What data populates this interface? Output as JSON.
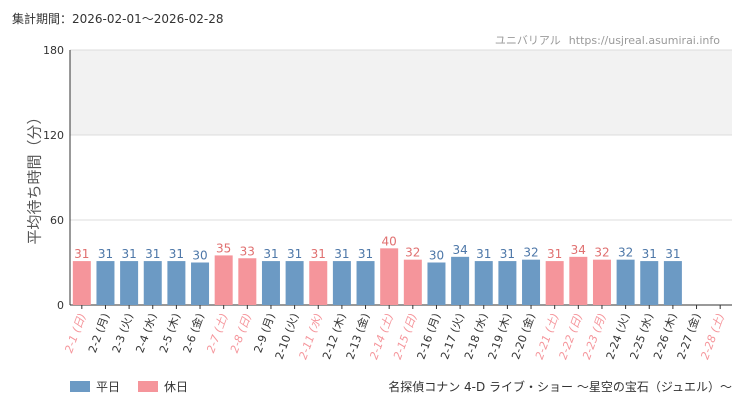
{
  "header": {
    "period_label": "集計期間：2026-02-01～2026-02-28",
    "site_name": "ユニバリアル",
    "site_url": "https://usjreal.asumirai.info"
  },
  "footer": {
    "subtitle": "名探偵コナン 4-D ライブ・ショー ～星空の宝石（ジュエル）～"
  },
  "colors": {
    "weekday": "#6c9ac4",
    "holiday": "#f5959b",
    "weekday_label": "#4d77a8",
    "holiday_label": "#e07070"
  },
  "chart_data": {
    "type": "bar",
    "ylabel": "平均待ち時間（分）",
    "ylim": [
      0,
      180
    ],
    "yticks": [
      0,
      60,
      120,
      180
    ],
    "shaded_band": [
      120,
      180
    ],
    "legend": [
      {
        "key": "weekday",
        "label": "平日"
      },
      {
        "key": "holiday",
        "label": "休日"
      }
    ],
    "categories": [
      "2-1 (日)",
      "2-2 (月)",
      "2-3 (火)",
      "2-4 (水)",
      "2-5 (木)",
      "2-6 (金)",
      "2-7 (土)",
      "2-8 (日)",
      "2-9 (月)",
      "2-10 (火)",
      "2-11 (水)",
      "2-12 (木)",
      "2-13 (金)",
      "2-14 (土)",
      "2-15 (日)",
      "2-16 (月)",
      "2-17 (火)",
      "2-18 (水)",
      "2-19 (木)",
      "2-20 (金)",
      "2-21 (土)",
      "2-22 (日)",
      "2-23 (月)",
      "2-24 (火)",
      "2-25 (水)",
      "2-26 (木)",
      "2-27 (金)",
      "2-28 (土)"
    ],
    "values": [
      31,
      31,
      31,
      31,
      31,
      30,
      35,
      33,
      31,
      31,
      31,
      31,
      31,
      40,
      32,
      30,
      34,
      31,
      31,
      32,
      31,
      34,
      32,
      32,
      31,
      31,
      null,
      null
    ],
    "day_type": [
      "holiday",
      "weekday",
      "weekday",
      "weekday",
      "weekday",
      "weekday",
      "holiday",
      "holiday",
      "weekday",
      "weekday",
      "holiday",
      "weekday",
      "weekday",
      "holiday",
      "holiday",
      "weekday",
      "weekday",
      "weekday",
      "weekday",
      "weekday",
      "holiday",
      "holiday",
      "holiday",
      "weekday",
      "weekday",
      "weekday",
      "weekday",
      "holiday"
    ]
  }
}
